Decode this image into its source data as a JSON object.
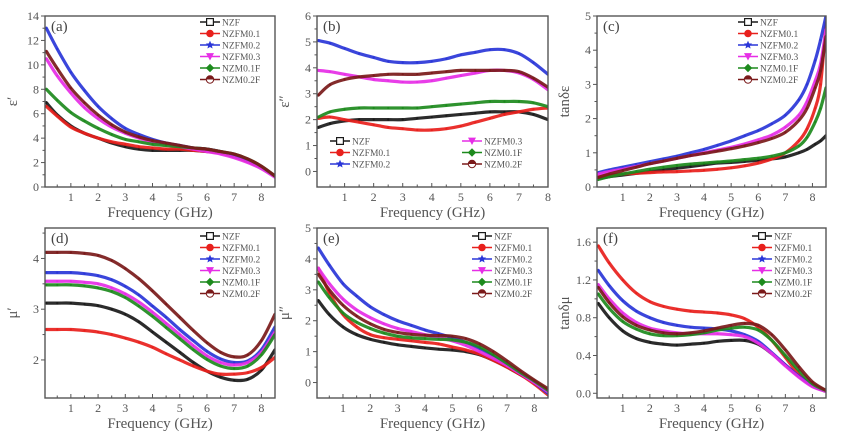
{
  "figure": {
    "series_names": [
      "NZF",
      "NZFM0.1",
      "NZFM0.2",
      "NZFM0.3",
      "NZM0.1F",
      "NZM0.2F"
    ],
    "series_colors": {
      "NZF": "#1a1a1a",
      "NZFM0.1": "#e8201c",
      "NZFM0.2": "#2a36d8",
      "NZFM0.3": "#e62ee6",
      "NZM0.1F": "#1d8a1d",
      "NZM0.2F": "#7a1a1a"
    },
    "series_markers": {
      "NZF": "open-square",
      "NZFM0.1": "circle",
      "NZFM0.2": "star",
      "NZFM0.3": "down-triangle",
      "NZM0.1F": "diamond",
      "NZM0.2F": "half-circle"
    }
  },
  "chart_data": [
    {
      "id": "a",
      "type": "line",
      "panel_label": "(a)",
      "xlabel": "Frequency (GHz)",
      "ylabel": "ε′",
      "xlim": [
        0.05,
        8.5
      ],
      "ylim": [
        0,
        14
      ],
      "xticks": [
        1,
        2,
        3,
        4,
        5,
        6,
        7,
        8
      ],
      "yticks": [
        0,
        2,
        4,
        6,
        8,
        10,
        12,
        14
      ],
      "legend": "top-right",
      "x": [
        0.1,
        0.5,
        1,
        1.5,
        2,
        2.5,
        3,
        3.5,
        4,
        4.5,
        5,
        5.5,
        6,
        6.5,
        7,
        7.5,
        8,
        8.5
      ],
      "series": [
        {
          "name": "NZF",
          "values": [
            6.9,
            5.9,
            5.0,
            4.4,
            4.0,
            3.6,
            3.3,
            3.1,
            3.0,
            3.0,
            3.0,
            3.0,
            2.9,
            2.8,
            2.5,
            2.1,
            1.6,
            0.9
          ]
        },
        {
          "name": "NZFM0.1",
          "values": [
            6.6,
            5.8,
            4.9,
            4.4,
            4.0,
            3.7,
            3.5,
            3.3,
            3.2,
            3.1,
            3.1,
            3.0,
            2.9,
            2.8,
            2.5,
            2.1,
            1.6,
            0.9
          ]
        },
        {
          "name": "NZFM0.2",
          "values": [
            13.0,
            11.3,
            9.4,
            7.9,
            6.6,
            5.6,
            4.8,
            4.3,
            3.9,
            3.6,
            3.4,
            3.2,
            3.1,
            2.9,
            2.6,
            2.2,
            1.6,
            0.9
          ]
        },
        {
          "name": "NZFM0.3",
          "values": [
            10.5,
            9.1,
            7.7,
            6.5,
            5.6,
            4.9,
            4.4,
            4.0,
            3.7,
            3.5,
            3.3,
            3.1,
            2.9,
            2.7,
            2.4,
            2.0,
            1.5,
            0.8
          ]
        },
        {
          "name": "NZM0.1F",
          "values": [
            8.0,
            7.1,
            6.1,
            5.4,
            4.8,
            4.3,
            3.9,
            3.7,
            3.5,
            3.4,
            3.3,
            3.2,
            3.1,
            2.9,
            2.7,
            2.3,
            1.7,
            0.9
          ]
        },
        {
          "name": "NZM0.2F",
          "values": [
            11.1,
            9.7,
            8.1,
            6.9,
            5.9,
            5.1,
            4.5,
            4.1,
            3.8,
            3.6,
            3.4,
            3.2,
            3.1,
            2.9,
            2.7,
            2.3,
            1.7,
            0.9
          ]
        }
      ]
    },
    {
      "id": "b",
      "type": "line",
      "panel_label": "(b)",
      "xlabel": "Frequency (GHz)",
      "ylabel": "ε″",
      "xlim": [
        0.05,
        8.0
      ],
      "ylim": [
        -0.6,
        6
      ],
      "xticks": [
        1,
        2,
        3,
        4,
        5,
        6,
        7,
        8
      ],
      "yticks": [
        0,
        1,
        2,
        3,
        4,
        5,
        6
      ],
      "legend": "bottom (two columns)",
      "x": [
        0.1,
        0.5,
        1,
        1.5,
        2,
        2.5,
        3,
        3.5,
        4,
        4.5,
        5,
        5.5,
        6,
        6.5,
        7,
        7.5,
        8
      ],
      "series": [
        {
          "name": "NZF",
          "values": [
            1.7,
            1.85,
            1.95,
            2.0,
            2.0,
            2.0,
            2.0,
            2.05,
            2.1,
            2.15,
            2.2,
            2.25,
            2.3,
            2.3,
            2.3,
            2.2,
            2.0
          ]
        },
        {
          "name": "NZFM0.1",
          "values": [
            2.05,
            2.1,
            2.0,
            1.9,
            1.8,
            1.7,
            1.65,
            1.6,
            1.6,
            1.65,
            1.75,
            1.9,
            2.05,
            2.2,
            2.3,
            2.4,
            2.45
          ]
        },
        {
          "name": "NZFM0.2",
          "values": [
            5.05,
            4.95,
            4.75,
            4.55,
            4.4,
            4.25,
            4.2,
            4.2,
            4.25,
            4.35,
            4.5,
            4.6,
            4.7,
            4.7,
            4.55,
            4.2,
            3.75
          ]
        },
        {
          "name": "NZFM0.3",
          "values": [
            3.9,
            3.85,
            3.75,
            3.65,
            3.55,
            3.5,
            3.45,
            3.45,
            3.5,
            3.6,
            3.7,
            3.8,
            3.9,
            3.9,
            3.8,
            3.55,
            3.15
          ]
        },
        {
          "name": "NZM0.1F",
          "values": [
            2.1,
            2.3,
            2.4,
            2.45,
            2.45,
            2.45,
            2.45,
            2.45,
            2.5,
            2.55,
            2.6,
            2.65,
            2.7,
            2.7,
            2.7,
            2.65,
            2.5
          ]
        },
        {
          "name": "NZM0.2F",
          "values": [
            2.95,
            3.35,
            3.55,
            3.65,
            3.7,
            3.75,
            3.75,
            3.75,
            3.8,
            3.85,
            3.9,
            3.9,
            3.9,
            3.9,
            3.85,
            3.6,
            3.25
          ]
        }
      ]
    },
    {
      "id": "c",
      "type": "line",
      "panel_label": "(c)",
      "xlabel": "Frequency (GHz)",
      "ylabel": "tanδε",
      "xlim": [
        0.05,
        8.5
      ],
      "ylim": [
        0,
        5
      ],
      "xticks": [
        1,
        2,
        3,
        4,
        5,
        6,
        7,
        8
      ],
      "yticks": [
        0,
        1,
        2,
        3,
        4,
        5
      ],
      "legend": "top-right",
      "x": [
        0.1,
        0.5,
        1,
        1.5,
        2,
        2.5,
        3,
        3.5,
        4,
        4.5,
        5,
        5.5,
        6,
        6.5,
        7,
        7.5,
        7.8,
        8.1,
        8.3,
        8.5
      ],
      "series": [
        {
          "name": "NZF",
          "values": [
            0.25,
            0.3,
            0.35,
            0.4,
            0.45,
            0.5,
            0.55,
            0.6,
            0.65,
            0.7,
            0.72,
            0.75,
            0.78,
            0.82,
            0.88,
            1.0,
            1.1,
            1.25,
            1.35,
            1.5
          ]
        },
        {
          "name": "NZFM0.1",
          "values": [
            0.3,
            0.35,
            0.38,
            0.4,
            0.42,
            0.44,
            0.45,
            0.47,
            0.49,
            0.52,
            0.56,
            0.62,
            0.7,
            0.82,
            1.0,
            1.35,
            1.7,
            2.3,
            3.0,
            4.8
          ]
        },
        {
          "name": "NZFM0.2",
          "values": [
            0.42,
            0.5,
            0.58,
            0.66,
            0.74,
            0.82,
            0.9,
            1.0,
            1.1,
            1.22,
            1.35,
            1.5,
            1.65,
            1.85,
            2.1,
            2.55,
            3.0,
            3.7,
            4.3,
            5.0
          ]
        },
        {
          "name": "NZFM0.3",
          "values": [
            0.38,
            0.45,
            0.52,
            0.6,
            0.68,
            0.76,
            0.84,
            0.92,
            1.0,
            1.08,
            1.16,
            1.26,
            1.38,
            1.52,
            1.75,
            2.1,
            2.5,
            3.1,
            3.6,
            4.6
          ]
        },
        {
          "name": "NZM0.1F",
          "values": [
            0.22,
            0.3,
            0.38,
            0.45,
            0.52,
            0.58,
            0.63,
            0.67,
            0.7,
            0.73,
            0.76,
            0.8,
            0.84,
            0.9,
            1.0,
            1.2,
            1.45,
            1.9,
            2.3,
            2.9
          ]
        },
        {
          "name": "NZM0.2F",
          "values": [
            0.28,
            0.38,
            0.48,
            0.58,
            0.68,
            0.76,
            0.84,
            0.92,
            0.98,
            1.05,
            1.12,
            1.2,
            1.3,
            1.42,
            1.6,
            1.95,
            2.3,
            2.9,
            3.4,
            4.4
          ]
        }
      ]
    },
    {
      "id": "d",
      "type": "line",
      "panel_label": "(d)",
      "xlabel": "Frequency (GHz)",
      "ylabel": "μ′",
      "xlim": [
        0.05,
        8.5
      ],
      "ylim": [
        1.25,
        4.6
      ],
      "xticks": [
        1,
        2,
        3,
        4,
        5,
        6,
        7,
        8
      ],
      "yticks": [
        2,
        3,
        4
      ],
      "legend": "top-right",
      "x": [
        0.1,
        0.5,
        1,
        1.5,
        2,
        2.5,
        3,
        3.5,
        4,
        4.5,
        5,
        5.5,
        6,
        6.5,
        7,
        7.5,
        8,
        8.5
      ],
      "series": [
        {
          "name": "NZF",
          "values": [
            3.12,
            3.12,
            3.12,
            3.1,
            3.07,
            3.0,
            2.9,
            2.75,
            2.55,
            2.35,
            2.15,
            1.95,
            1.78,
            1.66,
            1.6,
            1.62,
            1.8,
            2.2
          ]
        },
        {
          "name": "NZFM0.1",
          "values": [
            2.6,
            2.6,
            2.6,
            2.58,
            2.55,
            2.5,
            2.43,
            2.35,
            2.25,
            2.12,
            2.0,
            1.88,
            1.78,
            1.72,
            1.72,
            1.75,
            1.85,
            2.05
          ]
        },
        {
          "name": "NZFM0.2",
          "values": [
            3.72,
            3.72,
            3.72,
            3.7,
            3.66,
            3.58,
            3.45,
            3.28,
            3.06,
            2.84,
            2.6,
            2.38,
            2.17,
            2.02,
            1.95,
            1.98,
            2.2,
            2.65
          ]
        },
        {
          "name": "NZFM0.3",
          "values": [
            3.55,
            3.55,
            3.55,
            3.53,
            3.5,
            3.42,
            3.3,
            3.14,
            2.94,
            2.72,
            2.5,
            2.28,
            2.08,
            1.95,
            1.9,
            1.95,
            2.15,
            2.55
          ]
        },
        {
          "name": "NZM0.1F",
          "values": [
            3.48,
            3.48,
            3.48,
            3.46,
            3.42,
            3.35,
            3.23,
            3.06,
            2.86,
            2.64,
            2.42,
            2.2,
            2.01,
            1.88,
            1.83,
            1.88,
            2.1,
            2.5
          ]
        },
        {
          "name": "NZM0.2F",
          "values": [
            4.12,
            4.12,
            4.12,
            4.1,
            4.06,
            3.96,
            3.8,
            3.6,
            3.36,
            3.1,
            2.84,
            2.58,
            2.34,
            2.15,
            2.06,
            2.1,
            2.38,
            2.9
          ]
        }
      ]
    },
    {
      "id": "e",
      "type": "line",
      "panel_label": "(e)",
      "xlabel": "Frequency (GHz)",
      "ylabel": "μ″",
      "xlim": [
        0.05,
        8.5
      ],
      "ylim": [
        -0.5,
        5
      ],
      "xticks": [
        1,
        2,
        3,
        4,
        5,
        6,
        7,
        8
      ],
      "yticks": [
        0,
        1,
        2,
        3,
        4,
        5
      ],
      "legend": "top-right",
      "x": [
        0.1,
        0.5,
        1,
        1.5,
        2,
        2.5,
        3,
        3.5,
        4,
        4.5,
        5,
        5.5,
        6,
        6.5,
        7,
        7.5,
        8,
        8.5
      ],
      "series": [
        {
          "name": "NZF",
          "values": [
            2.65,
            2.2,
            1.8,
            1.55,
            1.4,
            1.3,
            1.22,
            1.17,
            1.12,
            1.08,
            1.05,
            1.0,
            0.9,
            0.72,
            0.5,
            0.25,
            0.0,
            -0.3
          ]
        },
        {
          "name": "NZFM0.1",
          "values": [
            3.7,
            2.9,
            2.2,
            1.8,
            1.55,
            1.45,
            1.4,
            1.35,
            1.3,
            1.25,
            1.15,
            1.05,
            0.92,
            0.72,
            0.5,
            0.25,
            -0.05,
            -0.4
          ]
        },
        {
          "name": "NZFM0.2",
          "values": [
            4.35,
            3.8,
            3.2,
            2.8,
            2.45,
            2.2,
            2.0,
            1.85,
            1.7,
            1.58,
            1.45,
            1.3,
            1.1,
            0.85,
            0.58,
            0.3,
            0.0,
            -0.35
          ]
        },
        {
          "name": "NZFM0.3",
          "values": [
            3.7,
            3.2,
            2.7,
            2.35,
            2.1,
            1.9,
            1.75,
            1.65,
            1.55,
            1.45,
            1.35,
            1.2,
            1.0,
            0.78,
            0.55,
            0.28,
            0.0,
            -0.3
          ]
        },
        {
          "name": "NZM0.1F",
          "values": [
            3.25,
            2.75,
            2.25,
            1.95,
            1.75,
            1.6,
            1.5,
            1.45,
            1.42,
            1.4,
            1.38,
            1.3,
            1.15,
            0.9,
            0.62,
            0.32,
            0.05,
            -0.25
          ]
        },
        {
          "name": "NZM0.2F",
          "values": [
            3.5,
            3.0,
            2.5,
            2.15,
            1.9,
            1.72,
            1.62,
            1.56,
            1.53,
            1.52,
            1.5,
            1.42,
            1.25,
            1.0,
            0.7,
            0.38,
            0.08,
            -0.2
          ]
        }
      ]
    },
    {
      "id": "f",
      "type": "line",
      "panel_label": "(f)",
      "xlabel": "Frequency (GHz)",
      "ylabel": "tanδμ",
      "xlim": [
        0.05,
        8.5
      ],
      "ylim": [
        -0.05,
        1.75
      ],
      "xticks": [
        1,
        2,
        3,
        4,
        5,
        6,
        7,
        8
      ],
      "yticks": [
        0.0,
        0.4,
        0.8,
        1.2,
        1.6
      ],
      "ytick_labels": [
        "0.0",
        "0.4",
        "0.8",
        "1.2",
        "1.6"
      ],
      "legend": "top-right",
      "x": [
        0.1,
        0.5,
        1,
        1.5,
        2,
        2.5,
        3,
        3.5,
        4,
        4.5,
        5,
        5.5,
        6,
        6.5,
        7,
        7.5,
        8,
        8.5
      ],
      "series": [
        {
          "name": "NZF",
          "values": [
            0.95,
            0.8,
            0.66,
            0.58,
            0.54,
            0.52,
            0.51,
            0.52,
            0.53,
            0.55,
            0.56,
            0.56,
            0.52,
            0.42,
            0.3,
            0.18,
            0.08,
            0.02
          ]
        },
        {
          "name": "NZFM0.1",
          "values": [
            1.56,
            1.38,
            1.2,
            1.06,
            0.97,
            0.92,
            0.89,
            0.87,
            0.86,
            0.85,
            0.83,
            0.79,
            0.7,
            0.56,
            0.38,
            0.2,
            0.08,
            0.02
          ]
        },
        {
          "name": "NZFM0.2",
          "values": [
            1.3,
            1.14,
            0.98,
            0.87,
            0.8,
            0.75,
            0.72,
            0.7,
            0.69,
            0.68,
            0.66,
            0.62,
            0.55,
            0.43,
            0.3,
            0.18,
            0.08,
            0.02
          ]
        },
        {
          "name": "NZFM0.3",
          "values": [
            1.15,
            1.0,
            0.85,
            0.75,
            0.69,
            0.66,
            0.64,
            0.63,
            0.63,
            0.63,
            0.62,
            0.6,
            0.53,
            0.42,
            0.29,
            0.17,
            0.07,
            0.02
          ]
        },
        {
          "name": "NZM0.1F",
          "values": [
            1.05,
            0.9,
            0.76,
            0.68,
            0.63,
            0.61,
            0.61,
            0.62,
            0.64,
            0.67,
            0.69,
            0.7,
            0.67,
            0.56,
            0.4,
            0.24,
            0.1,
            0.03
          ]
        },
        {
          "name": "NZM0.2F",
          "values": [
            1.12,
            0.96,
            0.81,
            0.72,
            0.67,
            0.64,
            0.63,
            0.64,
            0.66,
            0.69,
            0.72,
            0.74,
            0.72,
            0.62,
            0.46,
            0.28,
            0.12,
            0.03
          ]
        }
      ]
    }
  ]
}
